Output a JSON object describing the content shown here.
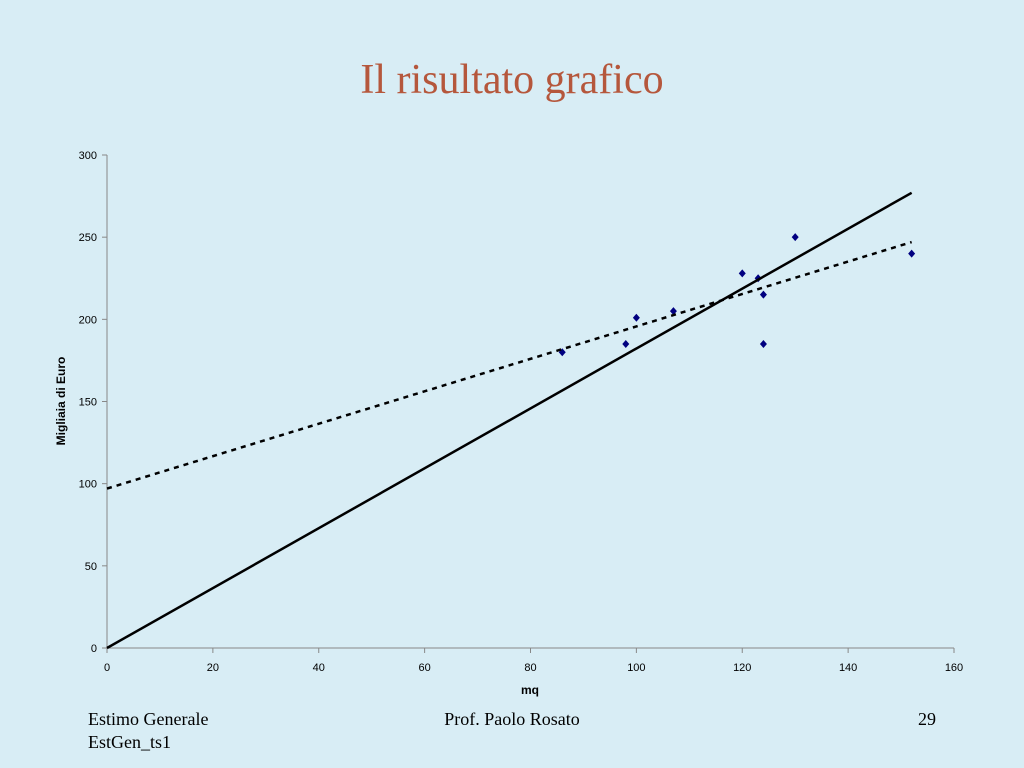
{
  "chart_data": {
    "type": "scatter",
    "title": "Il risultato grafico",
    "x_label": "mq",
    "y_label": "Migliaia di Euro",
    "series": [
      {
        "type": "scatter",
        "color": "#000080",
        "x": [
          86,
          98,
          100,
          107,
          120,
          123,
          124,
          124,
          130,
          152
        ],
        "values": [
          180,
          185,
          201,
          205,
          228,
          225,
          215,
          185,
          250,
          240
        ]
      },
      {
        "type": "line",
        "style": "solid",
        "color": "#000000",
        "x": [
          0,
          152
        ],
        "values": [
          0,
          277
        ]
      },
      {
        "type": "line",
        "style": "dashed",
        "color": "#000000",
        "x": [
          0,
          152
        ],
        "values": [
          97,
          247
        ]
      }
    ],
    "xlim": [
      0,
      160
    ],
    "xticks": [
      0,
      20,
      40,
      60,
      80,
      100,
      120,
      140,
      160
    ],
    "ylim": [
      0,
      300
    ],
    "yticks": [
      0,
      50,
      100,
      150,
      200,
      250,
      300
    ],
    "grid": false
  },
  "footer": {
    "left": [
      "Estimo Generale",
      "EstGen_ts1"
    ],
    "center": "Prof. Paolo Rosato",
    "page": 29
  }
}
